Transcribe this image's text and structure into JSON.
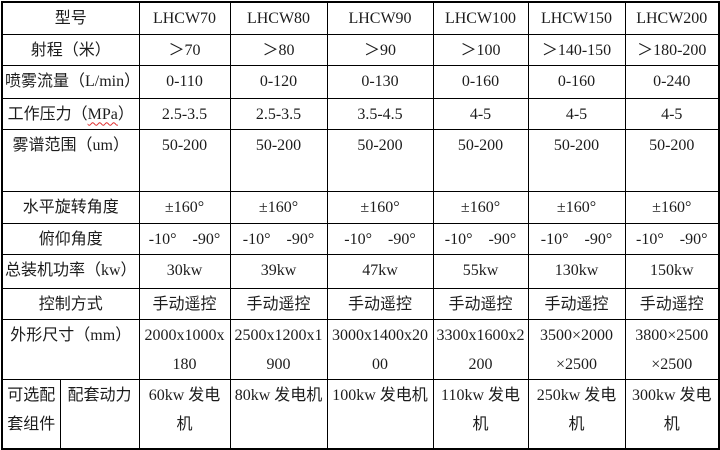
{
  "table": {
    "header": {
      "label": "型号",
      "models": [
        "LHCW70",
        "LHCW80",
        "LHCW90",
        "LHCW100",
        "LHCW150",
        "LHCW200"
      ]
    },
    "rows": [
      {
        "label": "射程（米）",
        "values": [
          "＞70",
          "＞80",
          "＞90",
          "＞100",
          "＞140-150",
          "＞180-200"
        ]
      },
      {
        "label": "喷雾流量（L/min）",
        "values": [
          "0-110",
          "0-120",
          "0-130",
          "0-160",
          "0-160",
          "0-240"
        ]
      },
      {
        "label": "工作压力（MPa）",
        "wavy": "MPa",
        "values": [
          "2.5-3.5",
          "2.5-3.5",
          "3.5-4.5",
          "4-5",
          "4-5",
          "4-5"
        ]
      },
      {
        "label": "雾谱范围（um）",
        "values": [
          "50-200",
          "50-200",
          "50-200",
          "50-200",
          "50-200",
          "50-200"
        ]
      },
      {
        "label": "水平旋转角度",
        "values": [
          "±160°",
          "±160°",
          "±160°",
          "±160°",
          "±160°",
          "±160°"
        ]
      },
      {
        "label": "俯仰角度",
        "values": [
          "-10°　-90°",
          "-10°　-90°",
          "-10°　-90°",
          "-10°　-90°",
          "-10°　-90°",
          "-10°　-90°"
        ]
      },
      {
        "label": "总装机功率（kw）",
        "values": [
          "30kw",
          "39kw",
          "47kw",
          "55kw",
          "130kw",
          "150kw"
        ]
      },
      {
        "label": "控制方式",
        "values": [
          "手动遥控",
          "手动遥控",
          "手动遥控",
          "手动遥控",
          "手动遥控",
          "手动遥控"
        ]
      },
      {
        "label": "外形尺寸（mm）",
        "values": [
          "2000x1000x\n180",
          "2500x1200x1\n900",
          "3000x1400x20\n00",
          "3300x1600x2\n200",
          "3500×2000\n×2500",
          "3800×2500\n×2500"
        ]
      }
    ],
    "footer_row": {
      "label_left": "可选配\n套组件",
      "label_right": "配套动力",
      "values": [
        "60kw 发电机",
        "80kw 发电机",
        "100kw 发电机",
        "110kw 发电机",
        "250kw 发电\n机",
        "300kw 发电\n机"
      ]
    }
  },
  "colors": {
    "border": "#000000",
    "text": "#1c1c1c",
    "spellcheck_underline": "#e03030",
    "background": "#ffffff"
  }
}
